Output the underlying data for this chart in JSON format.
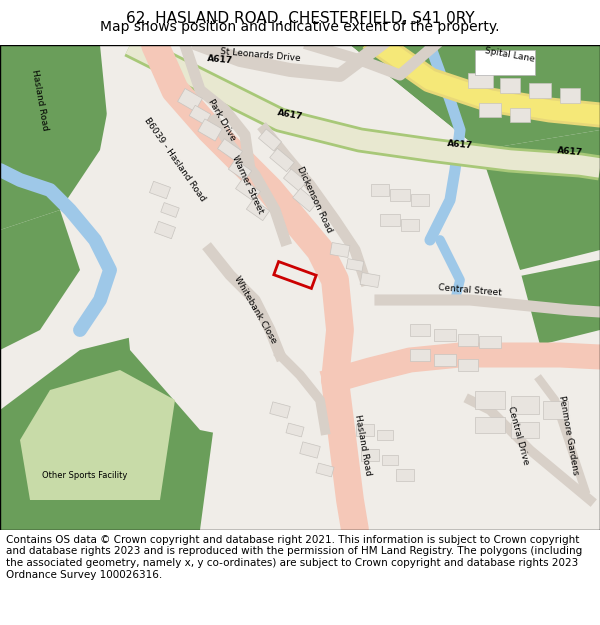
{
  "title_line1": "62, HASLAND ROAD, CHESTERFIELD, S41 0RY",
  "title_line2": "Map shows position and indicative extent of the property.",
  "footnote": "Contains OS data © Crown copyright and database right 2021. This information is subject to Crown copyright and database rights 2023 and is reproduced with the permission of HM Land Registry. The polygons (including the associated geometry, namely x, y co-ordinates) are subject to Crown copyright and database rights 2023 Ordnance Survey 100026316.",
  "title_fontsize": 11,
  "subtitle_fontsize": 10,
  "footnote_fontsize": 7.5,
  "fig_width": 6.0,
  "fig_height": 6.25,
  "map_bg": "#f0ede8",
  "green_dark": "#6a9e5a",
  "green_light": "#c8dba8",
  "road_main": "#f5c8b8",
  "road_yellow": "#f5e8a0",
  "road_green_border": "#a8c878",
  "water_blue": "#9ec8e8",
  "building_fill": "#e8e4df",
  "building_stroke": "#c8c4bf",
  "red_highlight": "#cc0000",
  "white": "#ffffff",
  "title_color": "#000000",
  "footnote_color": "#000000",
  "border_color": "#000000",
  "label_fontsize": 6.5,
  "small_label_fontsize": 6.0
}
